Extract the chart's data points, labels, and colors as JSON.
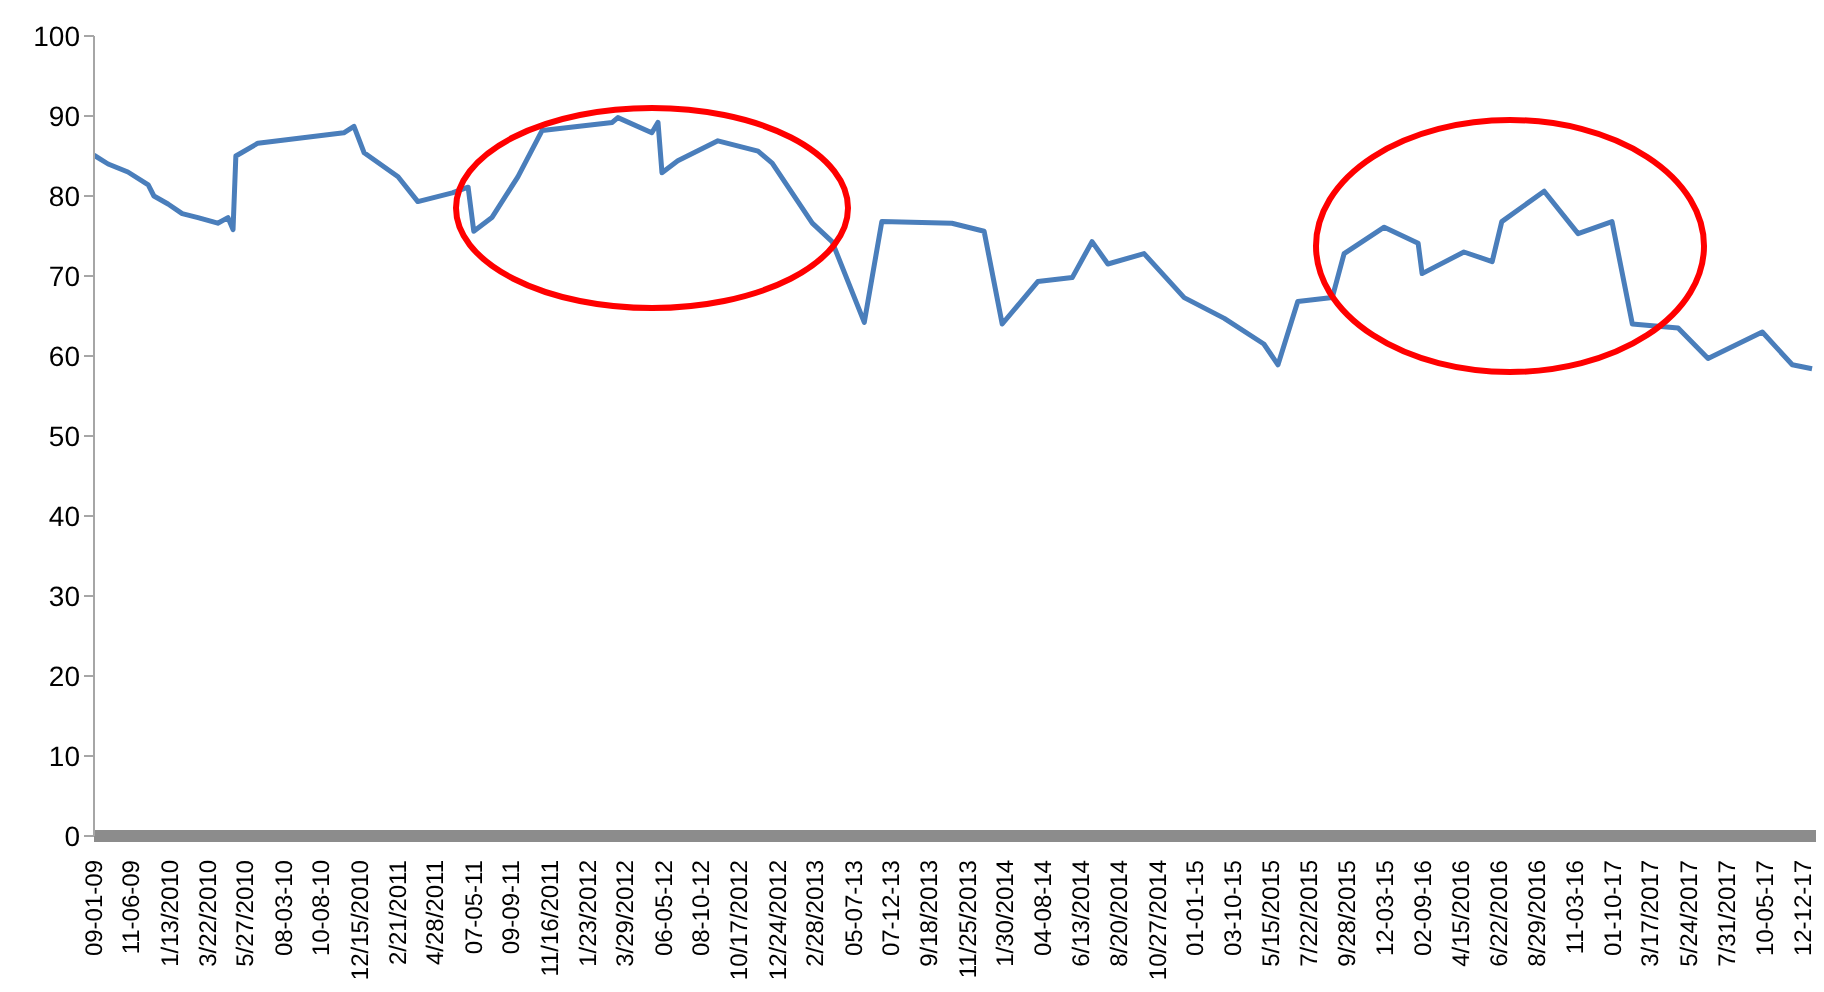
{
  "chart_data": {
    "type": "line",
    "marker": "none",
    "line_style": "solid",
    "x": [
      "2009-09-01",
      "2009-09-26",
      "2009-10-31",
      "2009-12-06",
      "2009-12-16",
      "2010-01-10",
      "2010-02-04",
      "2010-03-04",
      "2010-04-08",
      "2010-04-26",
      "2010-05-05",
      "2010-05-10",
      "2010-06-18",
      "2010-11-17",
      "2010-12-05",
      "2010-12-23",
      "2011-02-21",
      "2011-03-28",
      "2011-05-28",
      "2011-06-25",
      "2011-07-05",
      "2011-08-06",
      "2011-09-21",
      "2011-11-03",
      "2012-03-06",
      "2012-03-16",
      "2012-05-15",
      "2012-05-26",
      "2012-06-02",
      "2012-06-30",
      "2012-09-09",
      "2012-11-19",
      "2012-12-14",
      "2013-02-23",
      "2013-03-30",
      "2013-05-26",
      "2013-06-26",
      "2013-10-28",
      "2013-12-24",
      "2014-01-25",
      "2014-03-29",
      "2014-05-29",
      "2014-07-03",
      "2014-07-31",
      "2014-10-03",
      "2014-12-13",
      "2015-02-22",
      "2015-05-03",
      "2015-05-28",
      "2015-07-02",
      "2015-09-01",
      "2015-09-22",
      "2015-12-02",
      "2016-01-31",
      "2016-02-07",
      "2016-04-21",
      "2016-06-10",
      "2016-06-27",
      "2016-09-10",
      "2016-11-09",
      "2017-01-08",
      "2017-02-13",
      "2017-05-05",
      "2017-06-27",
      "2017-10-01",
      "2017-11-23",
      "2017-12-28"
    ],
    "series": [
      {
        "color": "#4a7ebb",
        "values": [
          85.1,
          84,
          83,
          81.4,
          80,
          79,
          77.8,
          77.3,
          76.6,
          77.3,
          75.8,
          85,
          86.6,
          87.9,
          88.7,
          85.4,
          82.4,
          79.3,
          80.4,
          81.1,
          75.6,
          77.3,
          82.4,
          88.2,
          89.2,
          89.8,
          87.9,
          89.2,
          82.9,
          84.4,
          86.9,
          85.6,
          84.1,
          76.6,
          74.3,
          64.2,
          76.8,
          76.6,
          75.6,
          64,
          69.3,
          69.8,
          74.3,
          71.5,
          72.8,
          67.3,
          64.7,
          61.5,
          58.9,
          66.8,
          67.3,
          72.8,
          76.1,
          74.1,
          70.3,
          73,
          71.8,
          76.8,
          80.6,
          75.3,
          76.8,
          64,
          63.5,
          59.7,
          63,
          58.9,
          58.4
        ]
      }
    ],
    "xlim": [
      "2009-09-01",
      "2018-01-04"
    ],
    "ylim": [
      0,
      100
    ],
    "yticks": [
      0,
      10,
      20,
      30,
      40,
      50,
      60,
      70,
      80,
      90,
      100
    ],
    "xticks": [
      {
        "value": "2009-09-01",
        "label": "09-01-09"
      },
      {
        "value": "2009-11-06",
        "label": "11-06-09"
      },
      {
        "value": "2010-01-13",
        "label": "1/13/2010"
      },
      {
        "value": "2010-03-22",
        "label": "3/22/2010"
      },
      {
        "value": "2010-05-27",
        "label": "5/27/2010"
      },
      {
        "value": "2010-08-03",
        "label": "08-03-10"
      },
      {
        "value": "2010-10-08",
        "label": "10-08-10"
      },
      {
        "value": "2010-12-15",
        "label": "12/15/2010"
      },
      {
        "value": "2011-02-21",
        "label": "2/21/2011"
      },
      {
        "value": "2011-04-28",
        "label": "4/28/2011"
      },
      {
        "value": "2011-07-05",
        "label": "07-05-11"
      },
      {
        "value": "2011-09-09",
        "label": "09-09-11"
      },
      {
        "value": "2011-11-16",
        "label": "11/16/2011"
      },
      {
        "value": "2012-01-23",
        "label": "1/23/2012"
      },
      {
        "value": "2012-03-29",
        "label": "3/29/2012"
      },
      {
        "value": "2012-06-05",
        "label": "06-05-12"
      },
      {
        "value": "2012-08-10",
        "label": "08-10-12"
      },
      {
        "value": "2012-10-17",
        "label": "10/17/2012"
      },
      {
        "value": "2012-12-24",
        "label": "12/24/2012"
      },
      {
        "value": "2013-02-28",
        "label": "2/28/2013"
      },
      {
        "value": "2013-05-07",
        "label": "05-07-13"
      },
      {
        "value": "2013-07-12",
        "label": "07-12-13"
      },
      {
        "value": "2013-09-18",
        "label": "9/18/2013"
      },
      {
        "value": "2013-11-25",
        "label": "11/25/2013"
      },
      {
        "value": "2014-01-30",
        "label": "1/30/2014"
      },
      {
        "value": "2014-04-08",
        "label": "04-08-14"
      },
      {
        "value": "2014-06-13",
        "label": "6/13/2014"
      },
      {
        "value": "2014-08-20",
        "label": "8/20/2014"
      },
      {
        "value": "2014-10-27",
        "label": "10/27/2014"
      },
      {
        "value": "2015-01-01",
        "label": "01-01-15"
      },
      {
        "value": "2015-03-10",
        "label": "03-10-15"
      },
      {
        "value": "2015-05-15",
        "label": "5/15/2015"
      },
      {
        "value": "2015-07-22",
        "label": "7/22/2015"
      },
      {
        "value": "2015-09-28",
        "label": "9/28/2015"
      },
      {
        "value": "2015-12-03",
        "label": "12-03-15"
      },
      {
        "value": "2016-02-09",
        "label": "02-09-16"
      },
      {
        "value": "2016-04-15",
        "label": "4/15/2016"
      },
      {
        "value": "2016-06-22",
        "label": "6/22/2016"
      },
      {
        "value": "2016-08-29",
        "label": "8/29/2016"
      },
      {
        "value": "2016-11-03",
        "label": "11-03-16"
      },
      {
        "value": "2017-01-10",
        "label": "01-10-17"
      },
      {
        "value": "2017-03-17",
        "label": "3/17/2017"
      },
      {
        "value": "2017-05-24",
        "label": "5/24/2017"
      },
      {
        "value": "2017-07-31",
        "label": "7/31/2017"
      },
      {
        "value": "2017-10-05",
        "label": "10-05-17"
      },
      {
        "value": "2017-12-12",
        "label": "12-12-17"
      }
    ]
  }
}
